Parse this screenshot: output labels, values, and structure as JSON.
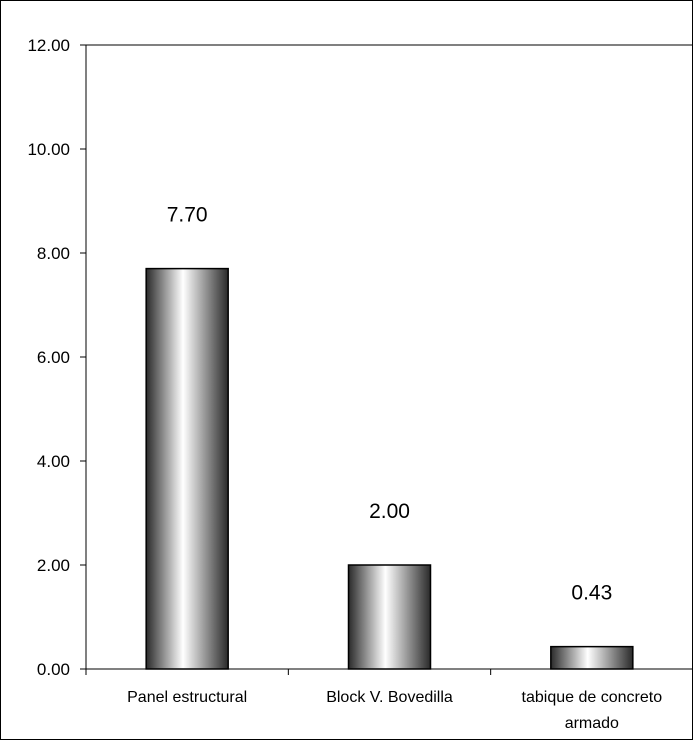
{
  "chart_data": {
    "type": "bar",
    "categories": [
      "Panel estructural",
      "Block V. Bovedilla",
      "tabique de concreto armado"
    ],
    "category_lines": [
      [
        "Panel estructural"
      ],
      [
        "Block V. Bovedilla"
      ],
      [
        "tabique de concreto",
        "armado"
      ]
    ],
    "values": [
      7.7,
      2.0,
      0.43
    ],
    "data_labels": [
      "7.70",
      "2.00",
      "0.43"
    ],
    "ylim": [
      0,
      12
    ],
    "yticks": [
      0,
      2,
      4,
      6,
      8,
      10,
      12
    ],
    "ytick_labels": [
      "0.00",
      "2.00",
      "4.00",
      "6.00",
      "8.00",
      "10.00",
      "12.00"
    ],
    "title": "",
    "xlabel": "",
    "ylabel": "",
    "grid": false,
    "bar_style": "cylinder-gradient",
    "colors": {
      "bar_dark": "#2a2a2a",
      "bar_light": "#ffffff",
      "axis": "#000000"
    }
  }
}
